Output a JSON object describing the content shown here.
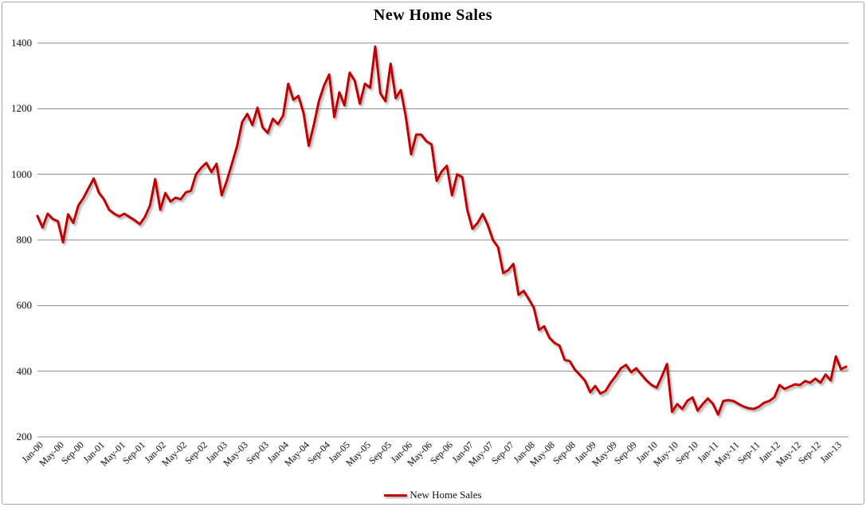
{
  "chart_data": {
    "type": "line",
    "title": "New Home Sales",
    "x_start": "Jan-00",
    "x_end": "Mar-13",
    "x_tick_labels": [
      "Jan-00",
      "May-00",
      "Sep-00",
      "Jan-01",
      "May-01",
      "Sep-01",
      "Jan-02",
      "May-02",
      "Sep-02",
      "Jan-03",
      "May-03",
      "Sep-03",
      "Jan-04",
      "May-04",
      "Sep-04",
      "Jan-05",
      "May-05",
      "Sep-05",
      "Jan-06",
      "May-06",
      "Sep-06",
      "Jan-07",
      "May-07",
      "Sep-07",
      "Jan-08",
      "May-08",
      "Sep-08",
      "Jan-09",
      "May-09",
      "Sep-09",
      "Jan-10",
      "May-10",
      "Sep-10",
      "Jan-11",
      "May-11",
      "Sep-11",
      "Jan-12",
      "May-12",
      "Sep-12",
      "Jan-13"
    ],
    "y_ticks": [
      200,
      400,
      600,
      800,
      1000,
      1200,
      1400
    ],
    "y_range": [
      200,
      1400
    ],
    "grid": "horizontal-only",
    "legend": {
      "position": "bottom-center",
      "entries": [
        "New Home Sales"
      ]
    },
    "series": [
      {
        "name": "New Home Sales",
        "color": "#c00000",
        "values": [
          873,
          838,
          880,
          864,
          857,
          793,
          878,
          852,
          905,
          928,
          958,
          987,
          944,
          924,
          892,
          880,
          872,
          880,
          870,
          860,
          848,
          870,
          905,
          985,
          892,
          943,
          917,
          929,
          924,
          945,
          950,
          1000,
          1020,
          1035,
          1007,
          1032,
          936,
          980,
          1032,
          1085,
          1159,
          1184,
          1150,
          1203,
          1143,
          1126,
          1169,
          1153,
          1179,
          1276,
          1227,
          1239,
          1186,
          1087,
          1150,
          1223,
          1270,
          1304,
          1174,
          1250,
          1210,
          1310,
          1285,
          1215,
          1276,
          1264,
          1389,
          1247,
          1223,
          1337,
          1232,
          1257,
          1174,
          1061,
          1121,
          1121,
          1101,
          1091,
          980,
          1009,
          1026,
          936,
          1000,
          992,
          891,
          834,
          852,
          879,
          845,
          800,
          778,
          699,
          708,
          727,
          633,
          645,
          620,
          593,
          526,
          537,
          503,
          487,
          478,
          435,
          431,
          405,
          389,
          371,
          336,
          355,
          332,
          340,
          365,
          385,
          409,
          419,
          397,
          409,
          390,
          372,
          358,
          350,
          384,
          422,
          276,
          300,
          285,
          310,
          320,
          280,
          300,
          317,
          300,
          268,
          309,
          312,
          309,
          300,
          292,
          287,
          285,
          292,
          304,
          309,
          321,
          358,
          346,
          353,
          360,
          358,
          370,
          365,
          377,
          365,
          390,
          372,
          445,
          406,
          414
        ]
      }
    ],
    "colors": {
      "line": "#c00000",
      "gridline": "#8f8f8f",
      "border": "#a6a6a6",
      "text": "#1a1a1a",
      "background": "#ffffff"
    }
  }
}
